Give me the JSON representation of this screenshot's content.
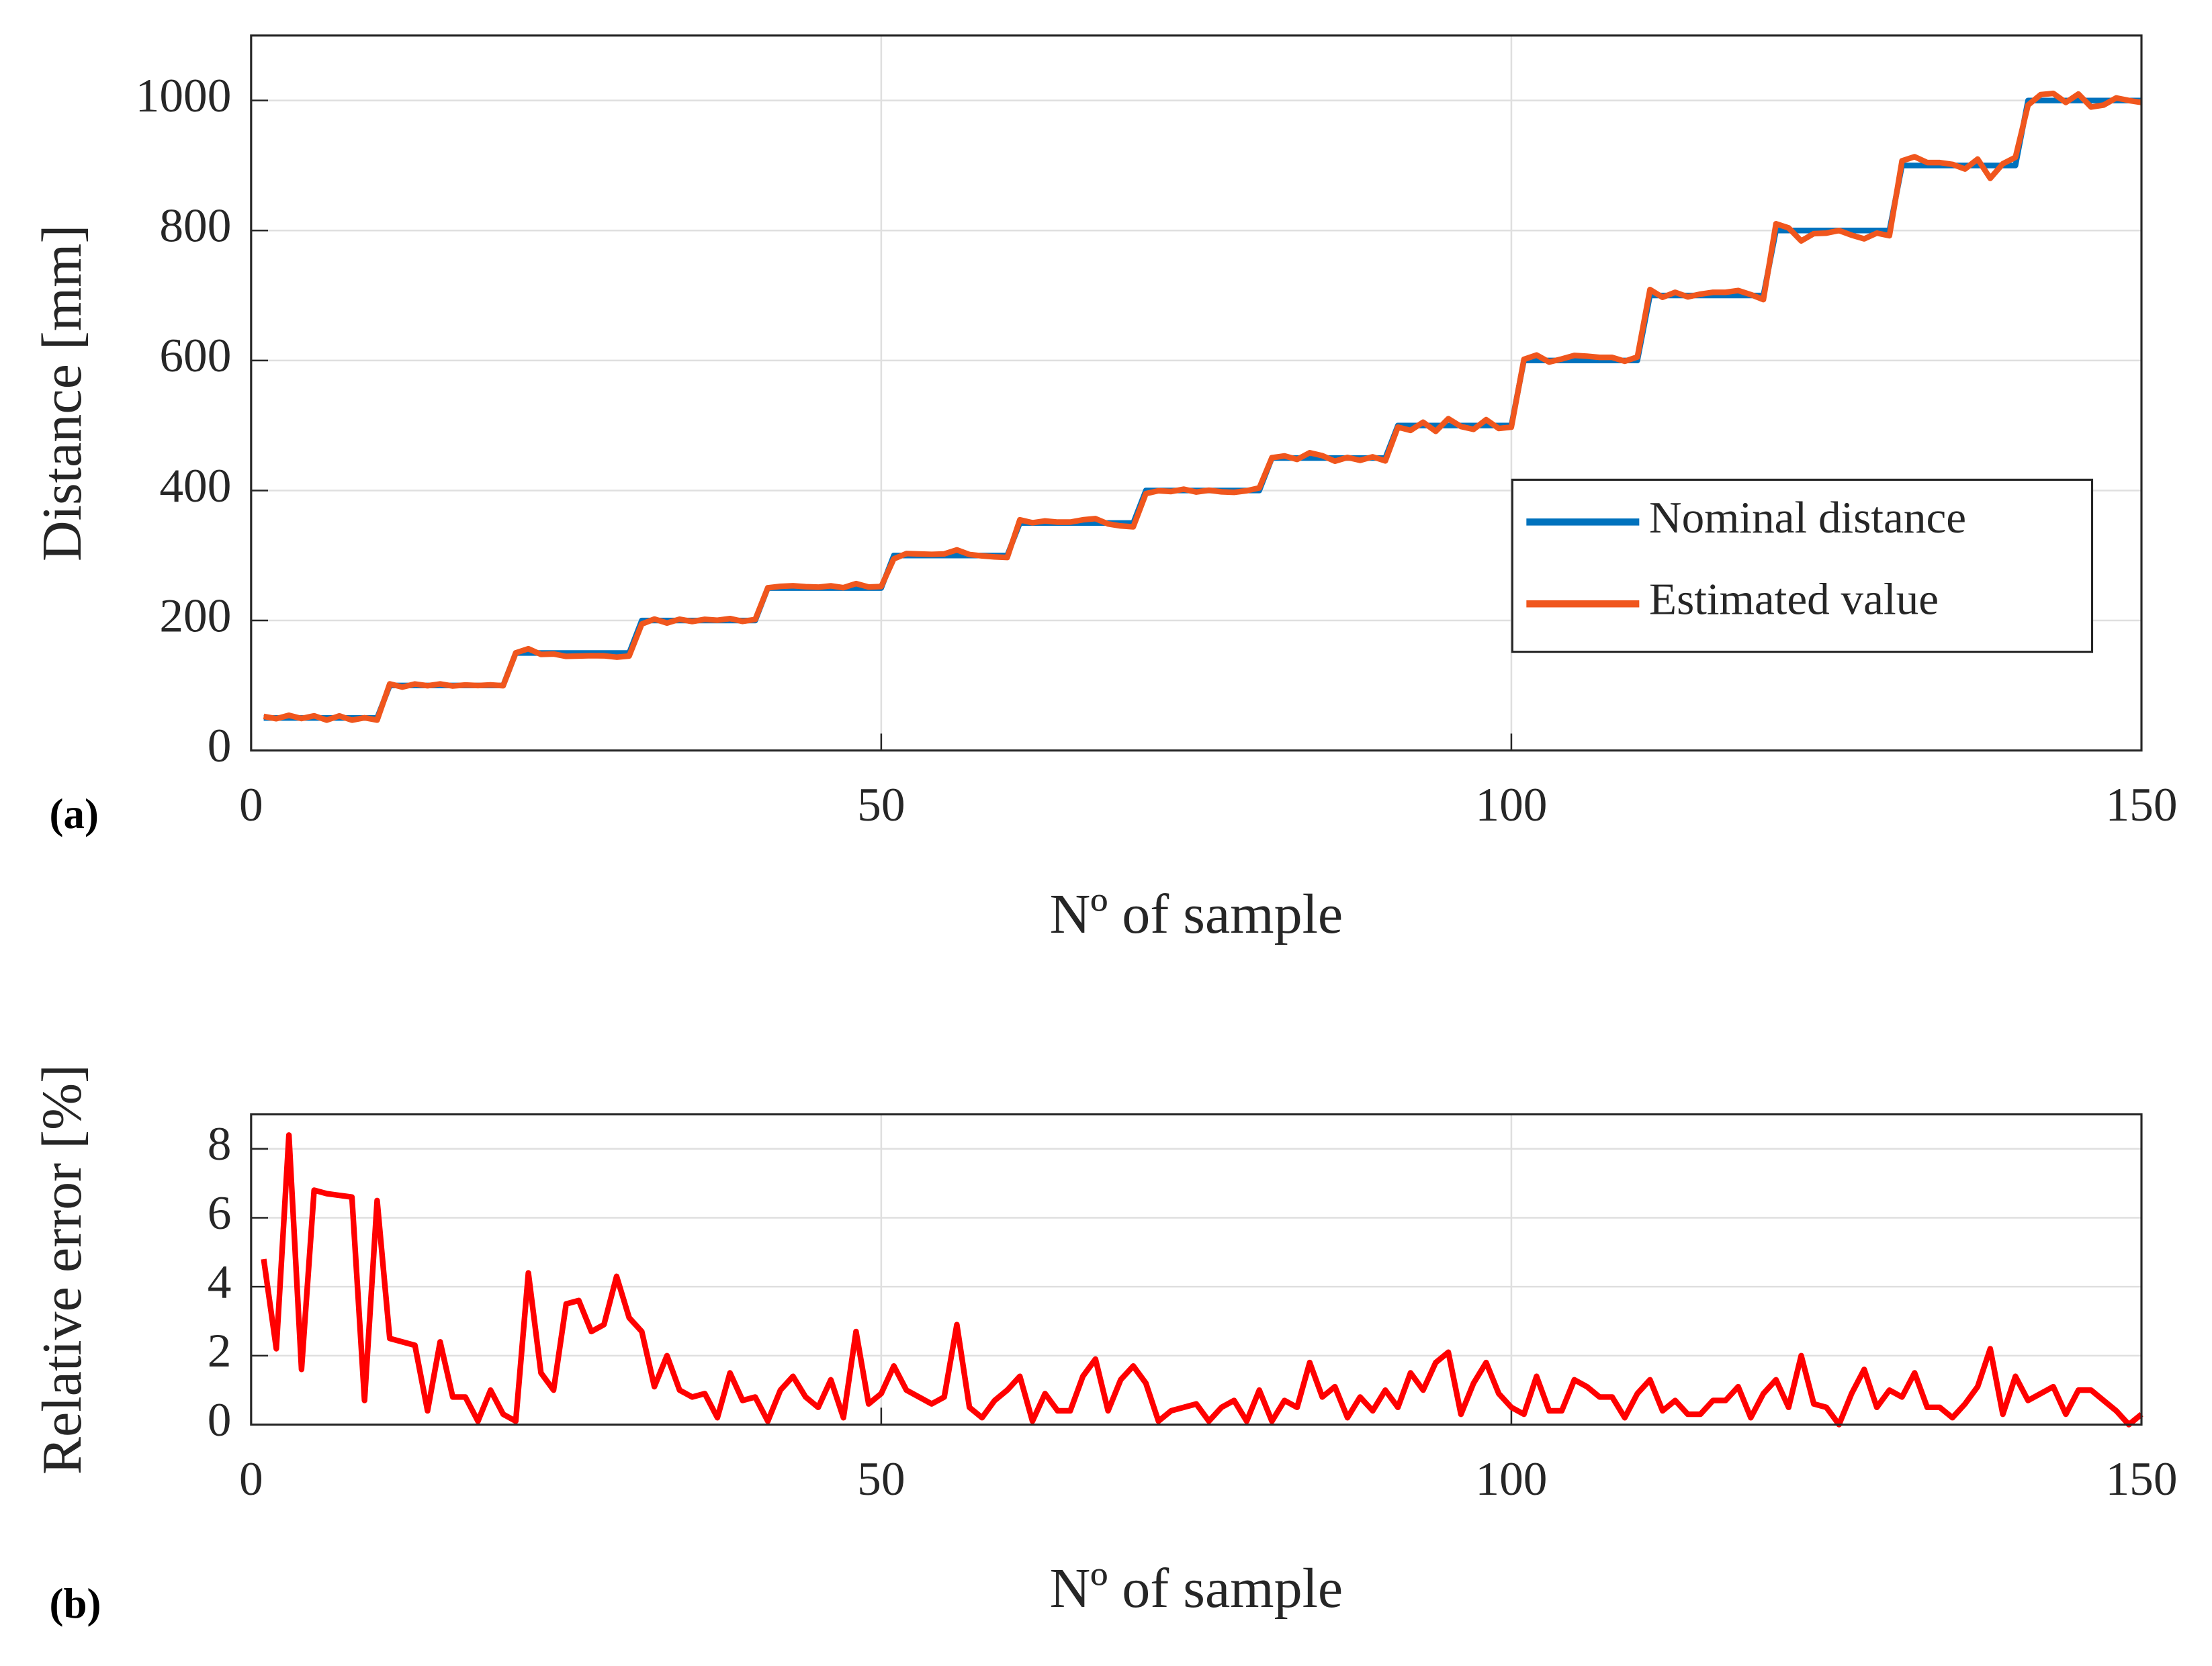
{
  "chart_data": [
    {
      "type": "line",
      "panel_label": "(a)",
      "xlabel": "Nº of sample",
      "ylabel": "Distance [mm]",
      "xlim": [
        0,
        150
      ],
      "ylim": [
        0,
        1100
      ],
      "xticks": [
        0,
        50,
        100,
        150
      ],
      "yticks": [
        0,
        200,
        400,
        600,
        800,
        1000
      ],
      "grid": true,
      "legend": "southeast",
      "x": [
        1,
        2,
        3,
        4,
        5,
        6,
        7,
        8,
        9,
        10,
        11,
        12,
        13,
        14,
        15,
        16,
        17,
        18,
        19,
        20,
        21,
        22,
        23,
        24,
        25,
        26,
        27,
        28,
        29,
        30,
        31,
        32,
        33,
        34,
        35,
        36,
        37,
        38,
        39,
        40,
        41,
        42,
        43,
        44,
        45,
        46,
        47,
        48,
        49,
        50,
        51,
        52,
        53,
        54,
        55,
        56,
        57,
        58,
        59,
        60,
        61,
        62,
        63,
        64,
        65,
        66,
        67,
        68,
        69,
        70,
        71,
        72,
        73,
        74,
        75,
        76,
        77,
        78,
        79,
        80,
        81,
        82,
        83,
        84,
        85,
        86,
        87,
        88,
        89,
        90,
        91,
        92,
        93,
        94,
        95,
        96,
        97,
        98,
        99,
        100,
        101,
        102,
        103,
        104,
        105,
        106,
        107,
        108,
        109,
        110,
        111,
        112,
        113,
        114,
        115,
        116,
        117,
        118,
        119,
        120,
        121,
        122,
        123,
        124,
        125,
        126,
        127,
        128,
        129,
        130,
        131,
        132,
        133,
        134,
        135,
        136,
        137,
        138,
        139,
        140,
        141,
        142,
        143,
        144,
        145,
        146,
        147,
        148,
        149,
        150
      ],
      "series": [
        {
          "name": "Nominal distance",
          "color": "#0072BD",
          "values": [
            50,
            50,
            50,
            50,
            50,
            50,
            50,
            50,
            50,
            50,
            100,
            100,
            100,
            100,
            100,
            100,
            100,
            100,
            100,
            100,
            150,
            150,
            150,
            150,
            150,
            150,
            150,
            150,
            150,
            150,
            200,
            200,
            200,
            200,
            200,
            200,
            200,
            200,
            200,
            200,
            250,
            250,
            250,
            250,
            250,
            250,
            250,
            250,
            250,
            250,
            300,
            300,
            300,
            300,
            300,
            300,
            300,
            300,
            300,
            300,
            350,
            350,
            350,
            350,
            350,
            350,
            350,
            350,
            350,
            350,
            400,
            400,
            400,
            400,
            400,
            400,
            400,
            400,
            400,
            400,
            450,
            450,
            450,
            450,
            450,
            450,
            450,
            450,
            450,
            450,
            500,
            500,
            500,
            500,
            500,
            500,
            500,
            500,
            500,
            500,
            600,
            600,
            600,
            600,
            600,
            600,
            600,
            600,
            600,
            600,
            700,
            700,
            700,
            700,
            700,
            700,
            700,
            700,
            700,
            700,
            800,
            800,
            800,
            800,
            800,
            800,
            800,
            800,
            800,
            800,
            900,
            900,
            900,
            900,
            900,
            900,
            900,
            900,
            900,
            900,
            1000,
            1000,
            1000,
            1000,
            1000,
            1000,
            1000,
            1000,
            1000,
            1000
          ]
        },
        {
          "name": "Estimated value",
          "color": "#F0561D",
          "values": [
            52.4,
            48.9,
            54.2,
            49.2,
            53.4,
            46.7,
            53.3,
            46.7,
            50.4,
            46.8,
            102.5,
            97.6,
            102.3,
            99.6,
            102.4,
            99.2,
            100.8,
            99.9,
            101,
            99.7,
            150.2,
            156.6,
            147.8,
            148.5,
            144.8,
            145.4,
            145.9,
            145.7,
            143.6,
            145.4,
            194.6,
            202.2,
            196,
            202,
            198.4,
            201.8,
            200.4,
            203,
            198.6,
            201.6,
            250.3,
            252.5,
            253.5,
            252,
            251.3,
            253.3,
            250.5,
            256.8,
            251.5,
            252.3,
            294.9,
            303,
            302.4,
            301.8,
            302.4,
            308.7,
            301.5,
            299.4,
            297.9,
            297,
            354.9,
            350.4,
            353.2,
            351.4,
            351.4,
            354.9,
            356.7,
            348.6,
            345.5,
            344.1,
            395.2,
            399.6,
            398.4,
            402,
            397.6,
            400.4,
            398,
            397.2,
            399.6,
            404,
            450.5,
            453.2,
            447.8,
            458.1,
            453.6,
            445.1,
            450.9,
            446.4,
            451.8,
            445.5,
            497.5,
            492.5,
            505,
            491,
            510.5,
            498.5,
            494,
            509,
            495.5,
            497.5,
            601.8,
            608.4,
            597.6,
            602.4,
            607.8,
            606.6,
            604.8,
            604.8,
            598.8,
            605.4,
            709.1,
            697.2,
            704.9,
            697.9,
            702.1,
            704.9,
            704.9,
            707.7,
            701.4,
            693.7,
            810.4,
            804,
            784,
            795.2,
            796,
            800,
            792.8,
            787.2,
            796,
            792,
            907.2,
            913.5,
            904.5,
            904.5,
            901.8,
            894.6,
            909.9,
            880.2,
            902.7,
            912.6,
            993,
            1009,
            1011,
            997,
            1010,
            990,
            993,
            1004,
            1000,
            997
          ]
        }
      ]
    },
    {
      "type": "line",
      "panel_label": "(b)",
      "xlabel": "Nº of sample",
      "ylabel": "Relative error [%]",
      "xlim": [
        0,
        150
      ],
      "ylim": [
        0,
        9
      ],
      "xticks": [
        0,
        50,
        100,
        150
      ],
      "yticks": [
        0,
        2,
        4,
        6,
        8
      ],
      "grid": true,
      "x": [
        1,
        2,
        3,
        4,
        5,
        6,
        7,
        8,
        9,
        10,
        11,
        12,
        13,
        14,
        15,
        16,
        17,
        18,
        19,
        20,
        21,
        22,
        23,
        24,
        25,
        26,
        27,
        28,
        29,
        30,
        31,
        32,
        33,
        34,
        35,
        36,
        37,
        38,
        39,
        40,
        41,
        42,
        43,
        44,
        45,
        46,
        47,
        48,
        49,
        50,
        51,
        52,
        53,
        54,
        55,
        56,
        57,
        58,
        59,
        60,
        61,
        62,
        63,
        64,
        65,
        66,
        67,
        68,
        69,
        70,
        71,
        72,
        73,
        74,
        75,
        76,
        77,
        78,
        79,
        80,
        81,
        82,
        83,
        84,
        85,
        86,
        87,
        88,
        89,
        90,
        91,
        92,
        93,
        94,
        95,
        96,
        97,
        98,
        99,
        100,
        101,
        102,
        103,
        104,
        105,
        106,
        107,
        108,
        109,
        110,
        111,
        112,
        113,
        114,
        115,
        116,
        117,
        118,
        119,
        120,
        121,
        122,
        123,
        124,
        125,
        126,
        127,
        128,
        129,
        130,
        131,
        132,
        133,
        134,
        135,
        136,
        137,
        138,
        139,
        140,
        141,
        142,
        143,
        144,
        145,
        146,
        147,
        148,
        149,
        150
      ],
      "series": [
        {
          "color": "#FF0000",
          "values": [
            4.8,
            2.2,
            8.4,
            1.6,
            6.8,
            6.7,
            6.65,
            6.6,
            0.7,
            6.5,
            2.5,
            2.4,
            2.3,
            0.4,
            2.4,
            0.8,
            0.8,
            0.1,
            1.0,
            0.3,
            0.1,
            4.4,
            1.5,
            1.0,
            3.5,
            3.6,
            2.7,
            2.9,
            4.3,
            3.1,
            2.7,
            1.1,
            2.0,
            1.0,
            0.8,
            0.9,
            0.2,
            1.5,
            0.7,
            0.8,
            0.1,
            1.0,
            1.4,
            0.8,
            0.5,
            1.3,
            0.2,
            2.7,
            0.6,
            0.9,
            1.7,
            1.0,
            0.8,
            0.6,
            0.8,
            2.9,
            0.5,
            0.2,
            0.7,
            1.0,
            1.4,
            0.1,
            0.9,
            0.4,
            0.4,
            1.4,
            1.9,
            0.4,
            1.3,
            1.7,
            1.2,
            0.1,
            0.4,
            0.5,
            0.6,
            0.1,
            0.5,
            0.7,
            0.1,
            1.0,
            0.1,
            0.7,
            0.5,
            1.8,
            0.8,
            1.1,
            0.2,
            0.8,
            0.4,
            1.0,
            0.5,
            1.5,
            1.0,
            1.8,
            2.1,
            0.3,
            1.2,
            1.8,
            0.9,
            0.5,
            0.3,
            1.4,
            0.4,
            0.4,
            1.3,
            1.1,
            0.8,
            0.8,
            0.2,
            0.9,
            1.3,
            0.4,
            0.7,
            0.3,
            0.3,
            0.7,
            0.7,
            1.1,
            0.2,
            0.9,
            1.3,
            0.5,
            2.0,
            0.6,
            0.5,
            0.0,
            0.9,
            1.6,
            0.5,
            1.0,
            0.8,
            1.5,
            0.5,
            0.5,
            0.2,
            0.6,
            1.1,
            2.2,
            0.3,
            1.4,
            0.7,
            0.9,
            1.1,
            0.3,
            1.0,
            1.0,
            0.7,
            0.4,
            0.0,
            0.3
          ]
        }
      ]
    }
  ]
}
